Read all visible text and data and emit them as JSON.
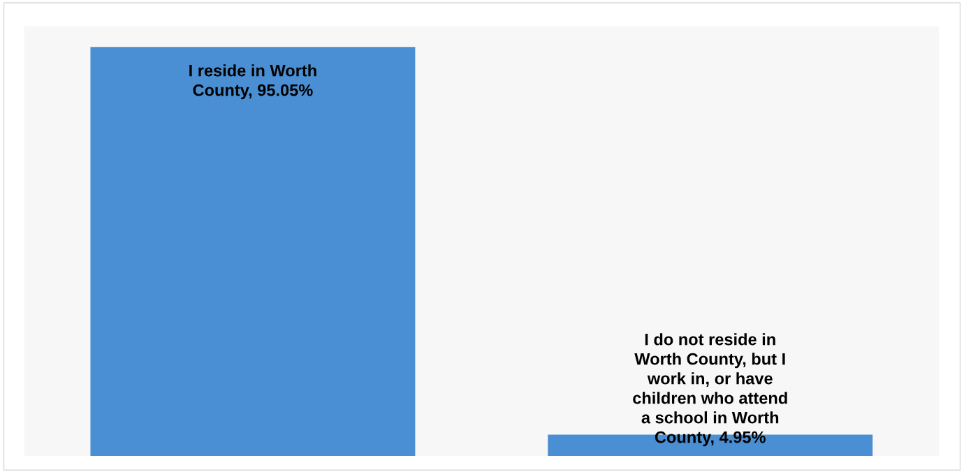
{
  "chart_data": {
    "type": "bar",
    "categories": [
      null,
      null
    ],
    "values": [
      95.05,
      4.95
    ],
    "color": "#4a8fd3",
    "value_labels": [
      "I reside in Worth\nCounty, 95.05%",
      "I do not reside in\nWorth County, but I\nwork in, or have\nchildren who attend\na school in Worth\nCounty, 4.95%"
    ],
    "grid": false,
    "legend": false
  }
}
